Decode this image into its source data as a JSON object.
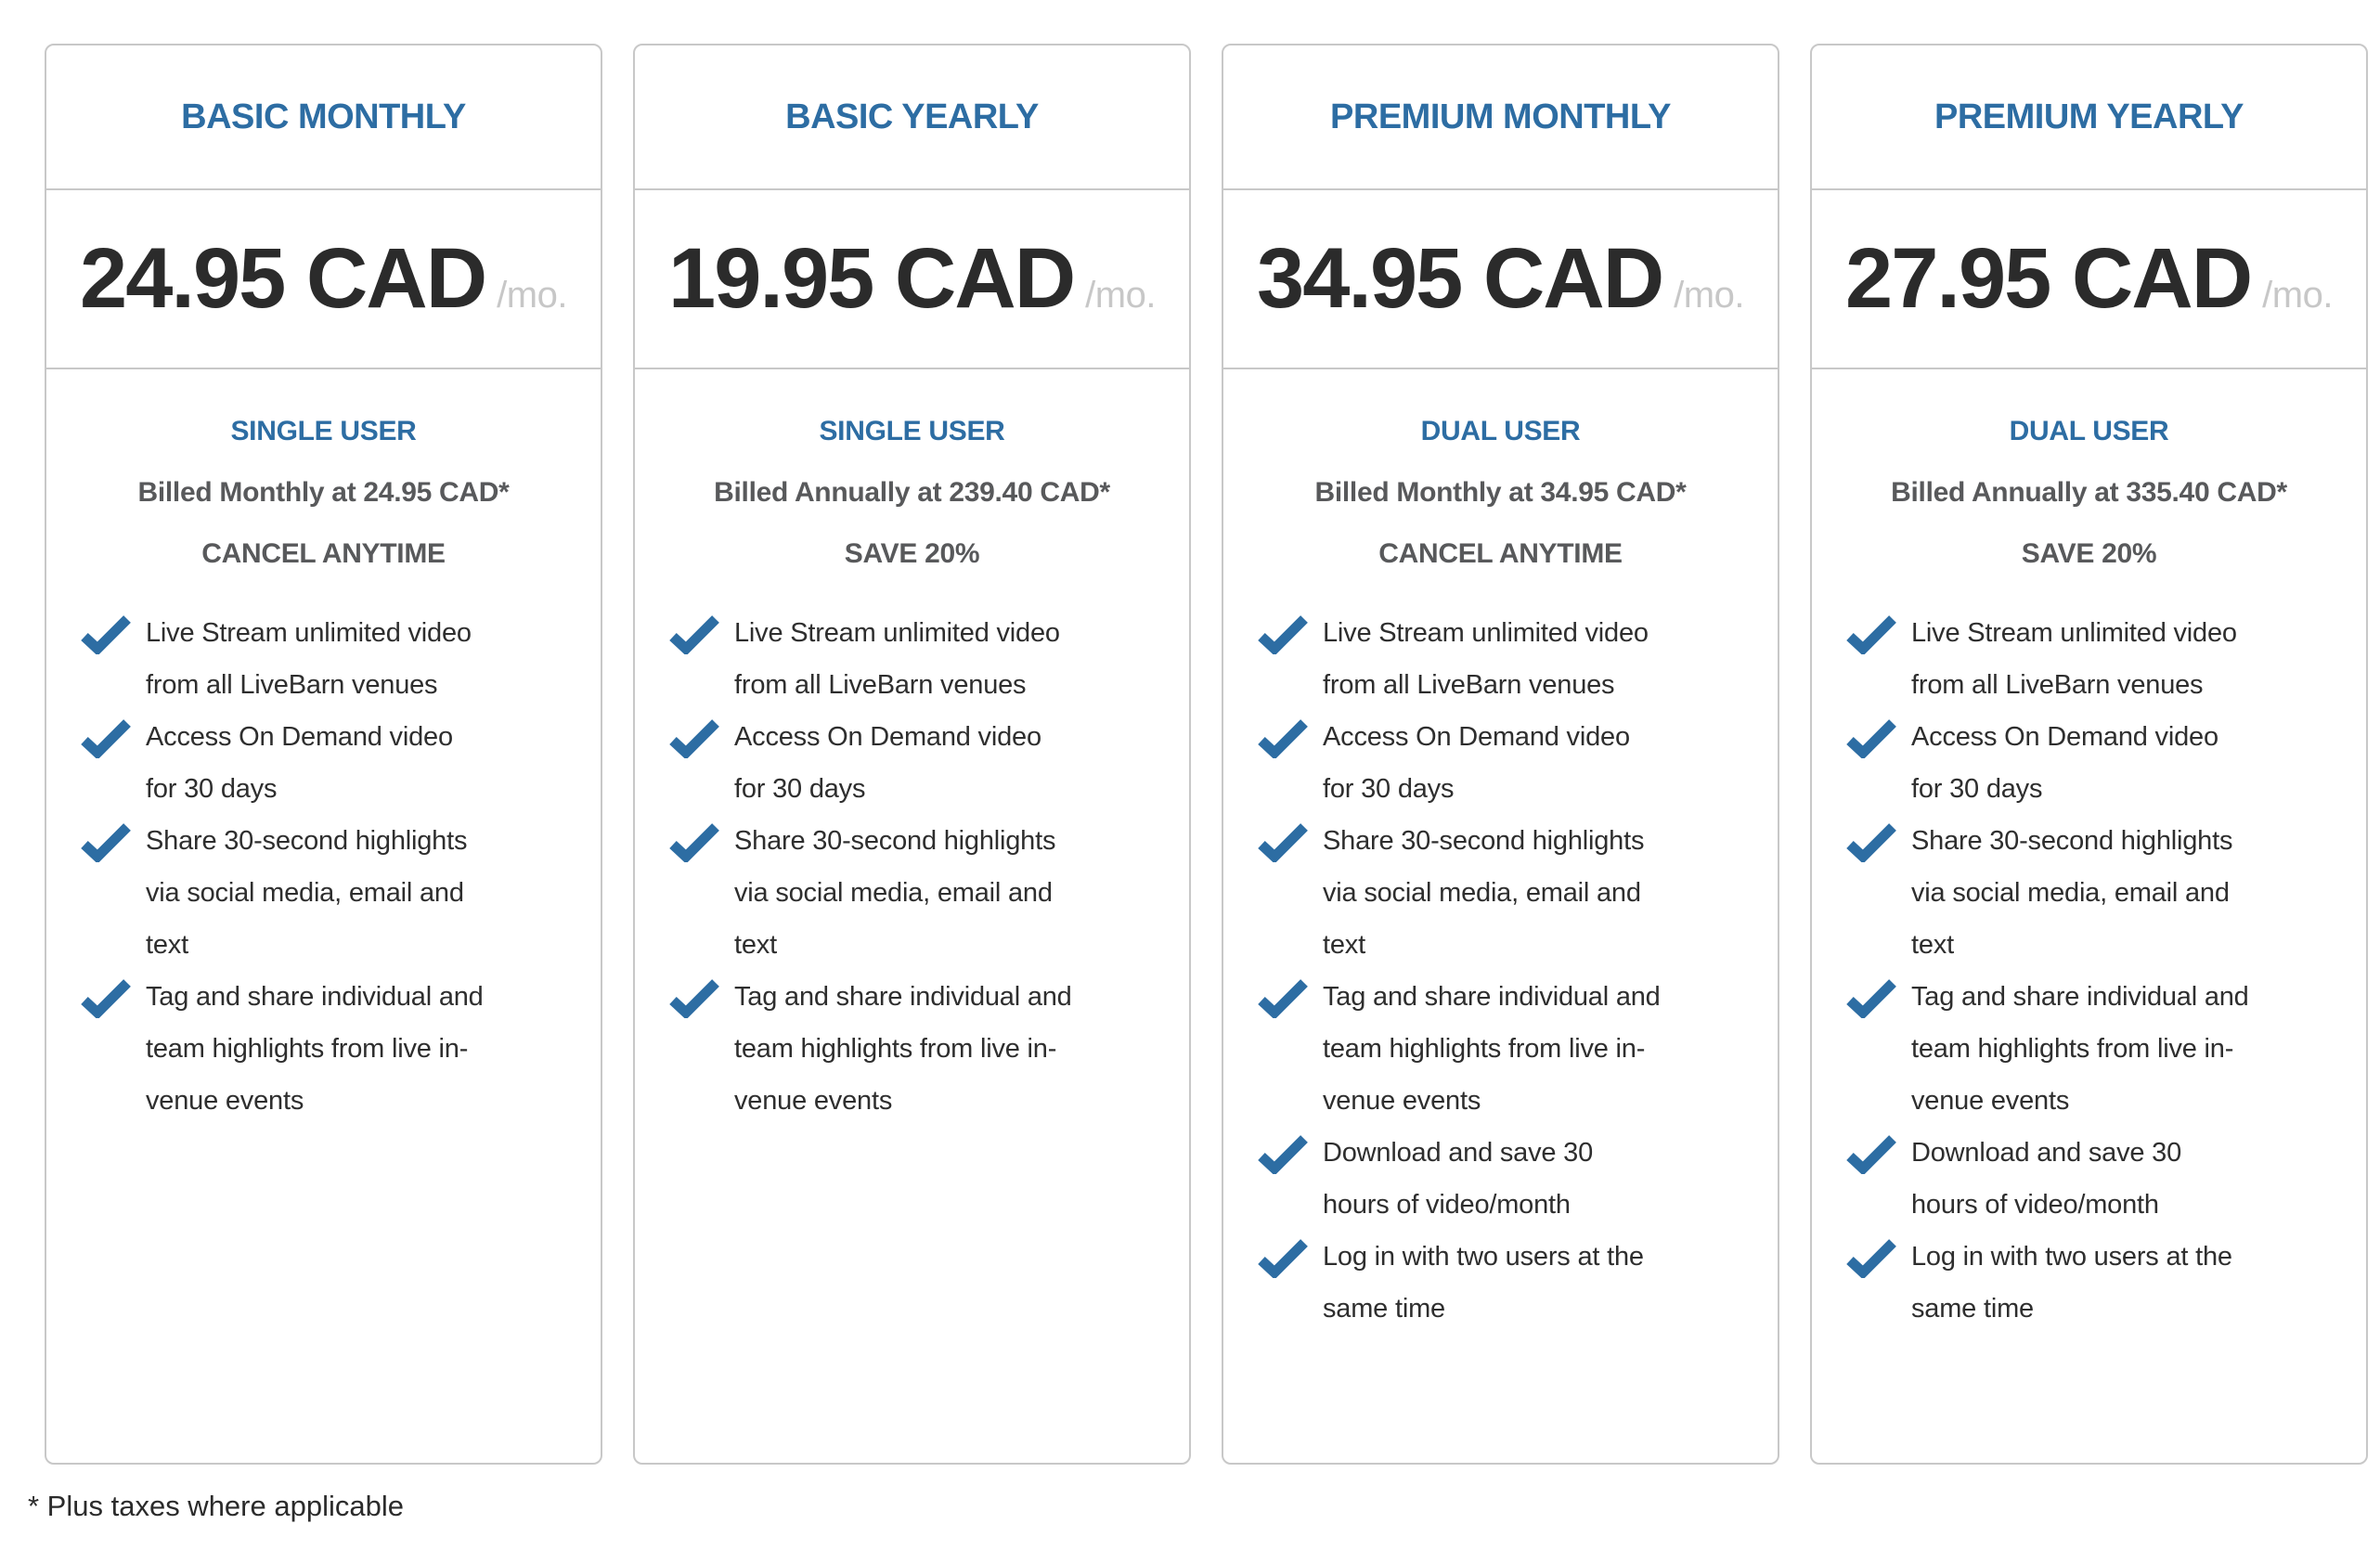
{
  "footnote": "* Plus taxes where applicable",
  "colors": {
    "accent_blue": "#2d6da3",
    "price_color": "#2b2b2b",
    "muted_text": "#58595b",
    "period_gray": "#c7c7c7",
    "border_gray": "#c8c8c8",
    "check_blue": "#2d6da3"
  },
  "cards": [
    {
      "title": "BASIC MONTHLY",
      "price": "24.95 CAD",
      "period": "/mo.",
      "tier": "SINGLE USER",
      "billing": "Billed Monthly at 24.95 CAD*",
      "note": "CANCEL ANYTIME",
      "features": [
        "Live Stream unlimited video from all LiveBarn venues",
        "Access On Demand video for 30 days",
        "Share 30-second highlights via social media, email and text",
        "Tag and share individual and team highlights from live in-venue events"
      ]
    },
    {
      "title": "BASIC YEARLY",
      "price": "19.95 CAD",
      "period": "/mo.",
      "tier": "SINGLE USER",
      "billing": "Billed Annually at 239.40 CAD*",
      "note": "SAVE 20%",
      "features": [
        "Live Stream unlimited video from all LiveBarn venues",
        "Access On Demand video for 30 days",
        "Share 30-second highlights via social media, email and text",
        "Tag and share individual and team highlights from live in-venue events"
      ]
    },
    {
      "title": "PREMIUM MONTHLY",
      "price": "34.95 CAD",
      "period": "/mo.",
      "tier": "DUAL USER",
      "billing": "Billed Monthly at 34.95 CAD*",
      "note": "CANCEL ANYTIME",
      "features": [
        "Live Stream unlimited video from all LiveBarn venues",
        "Access On Demand video for 30 days",
        "Share 30-second highlights via social media, email and text",
        "Tag and share individual and team highlights from live in-venue events",
        "Download and save 30 hours of video/month",
        "Log in with two users at the same time"
      ]
    },
    {
      "title": "PREMIUM YEARLY",
      "price": "27.95 CAD",
      "period": "/mo.",
      "tier": "DUAL USER",
      "billing": "Billed Annually at 335.40 CAD*",
      "note": "SAVE 20%",
      "features": [
        "Live Stream unlimited video from all LiveBarn venues",
        "Access On Demand video for 30 days",
        "Share 30-second highlights via social media, email and text",
        "Tag and share individual and team highlights from live in-venue events",
        "Download and save 30 hours of video/month",
        "Log in with two users at the same time"
      ]
    }
  ]
}
